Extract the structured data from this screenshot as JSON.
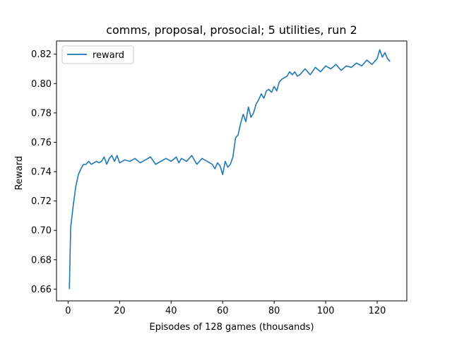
{
  "chart_data": {
    "type": "line",
    "title": "comms, proposal, prosocial; 5 utilities, run 2",
    "xlabel": "Episodes of 128 games (thousands)",
    "ylabel": "Reward",
    "xlim": [
      -4.5,
      131.5
    ],
    "ylim": [
      0.652,
      0.829
    ],
    "xticks": [
      0,
      20,
      40,
      60,
      80,
      100,
      120
    ],
    "xtick_labels": [
      "0",
      "20",
      "40",
      "60",
      "80",
      "100",
      "120"
    ],
    "yticks": [
      0.66,
      0.68,
      0.7,
      0.72,
      0.74,
      0.76,
      0.78,
      0.8,
      0.82
    ],
    "ytick_labels": [
      "0.66",
      "0.68",
      "0.70",
      "0.72",
      "0.74",
      "0.76",
      "0.78",
      "0.80",
      "0.82"
    ],
    "grid": false,
    "legend": {
      "placement": "top-left"
    },
    "series": [
      {
        "name": "reward",
        "color": "#1f77b4",
        "x": [
          0.5,
          1.0,
          2.0,
          3.0,
          4.0,
          5.0,
          6.0,
          7.0,
          8.0,
          9.0,
          10.0,
          11.0,
          12.0,
          13.0,
          14.0,
          15.0,
          16.0,
          17.0,
          18.0,
          19.0,
          20.0,
          22.0,
          24.0,
          26.0,
          28.0,
          30.0,
          32.0,
          34.0,
          36.0,
          38.0,
          40.0,
          42.0,
          43.0,
          44.0,
          46.0,
          48.0,
          50.0,
          52.0,
          54.0,
          56.0,
          57.0,
          58.0,
          59.0,
          60.0,
          61.0,
          62.0,
          63.0,
          64.0,
          65.0,
          66.0,
          67.0,
          68.0,
          69.0,
          70.0,
          71.0,
          72.0,
          73.0,
          74.0,
          75.0,
          76.0,
          77.0,
          78.0,
          79.0,
          80.0,
          81.0,
          82.0,
          83.0,
          84.0,
          85.0,
          86.0,
          87.0,
          88.0,
          89.0,
          90.0,
          92.0,
          94.0,
          96.0,
          98.0,
          100.0,
          102.0,
          104.0,
          106.0,
          108.0,
          110.0,
          112.0,
          114.0,
          116.0,
          118.0,
          120.0,
          121.0,
          122.0,
          123.0,
          124.0,
          125.0
        ],
        "y": [
          0.66,
          0.702,
          0.717,
          0.73,
          0.738,
          0.742,
          0.745,
          0.745,
          0.747,
          0.745,
          0.746,
          0.747,
          0.746,
          0.747,
          0.75,
          0.745,
          0.749,
          0.751,
          0.747,
          0.751,
          0.746,
          0.748,
          0.747,
          0.749,
          0.746,
          0.748,
          0.75,
          0.745,
          0.747,
          0.749,
          0.747,
          0.75,
          0.746,
          0.749,
          0.747,
          0.751,
          0.745,
          0.749,
          0.747,
          0.745,
          0.742,
          0.746,
          0.744,
          0.738,
          0.747,
          0.743,
          0.745,
          0.75,
          0.763,
          0.765,
          0.773,
          0.779,
          0.774,
          0.784,
          0.777,
          0.78,
          0.786,
          0.789,
          0.793,
          0.79,
          0.795,
          0.796,
          0.794,
          0.798,
          0.795,
          0.801,
          0.803,
          0.804,
          0.805,
          0.808,
          0.806,
          0.808,
          0.805,
          0.806,
          0.81,
          0.806,
          0.811,
          0.808,
          0.812,
          0.81,
          0.813,
          0.809,
          0.812,
          0.811,
          0.814,
          0.812,
          0.816,
          0.813,
          0.817,
          0.823,
          0.818,
          0.821,
          0.817,
          0.815
        ]
      }
    ]
  }
}
